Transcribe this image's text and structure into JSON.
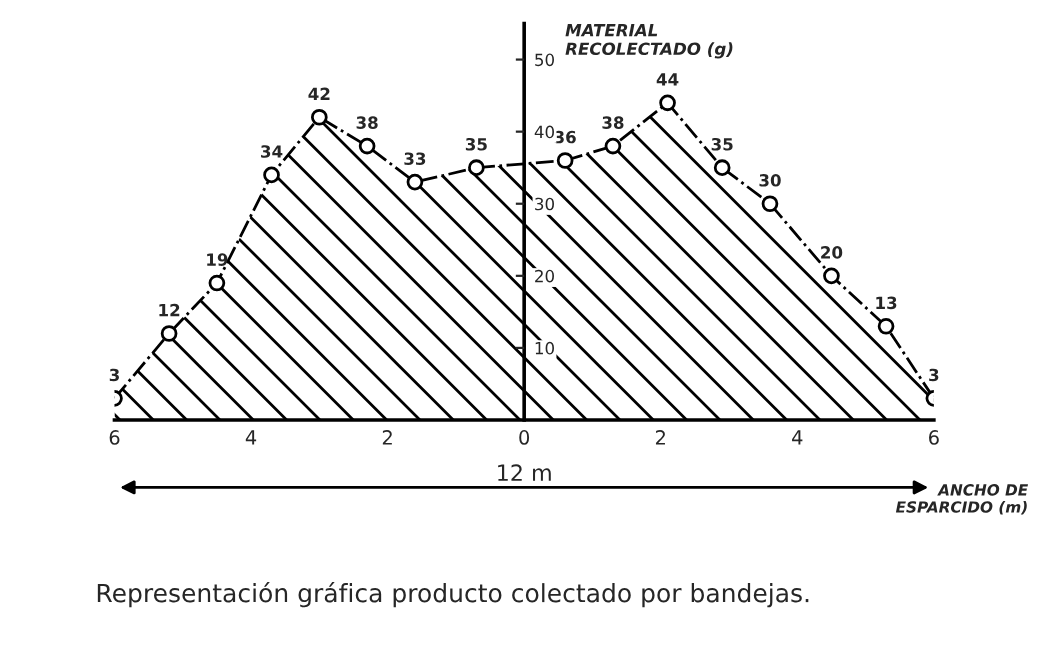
{
  "chart_data": {
    "type": "area",
    "title": "Representación gráfica producto colectado por bandejas.",
    "xlabel": "ANCHO DE\nESPARCIDO (m)",
    "ylabel": "MATERIAL\nRECOLECTADO (g)",
    "x": [
      -6,
      -5.2,
      -4.5,
      -3.7,
      -3.0,
      -2.3,
      -1.6,
      -0.7,
      0.6,
      1.3,
      2.1,
      2.9,
      3.6,
      4.5,
      5.3,
      6
    ],
    "series": [
      {
        "color": "#000000",
        "values": [
          3,
          12,
          19,
          34,
          42,
          38,
          33,
          35,
          36,
          38,
          44,
          35,
          30,
          20,
          13,
          3
        ]
      }
    ],
    "xlim": [
      -6,
      6
    ],
    "xticks": [
      {
        "value": -6,
        "label": "6"
      },
      {
        "value": -4,
        "label": "4"
      },
      {
        "value": -2,
        "label": "2"
      },
      0,
      2,
      4,
      {
        "value": 6,
        "label": "6"
      }
    ],
    "ylim": [
      0,
      55
    ],
    "yticks": [
      10,
      20,
      30,
      40,
      50
    ],
    "annotations": [
      "12 m"
    ],
    "data_labels": true,
    "marker": "circle",
    "line_style": "dashed",
    "grid": false,
    "legend": false
  }
}
